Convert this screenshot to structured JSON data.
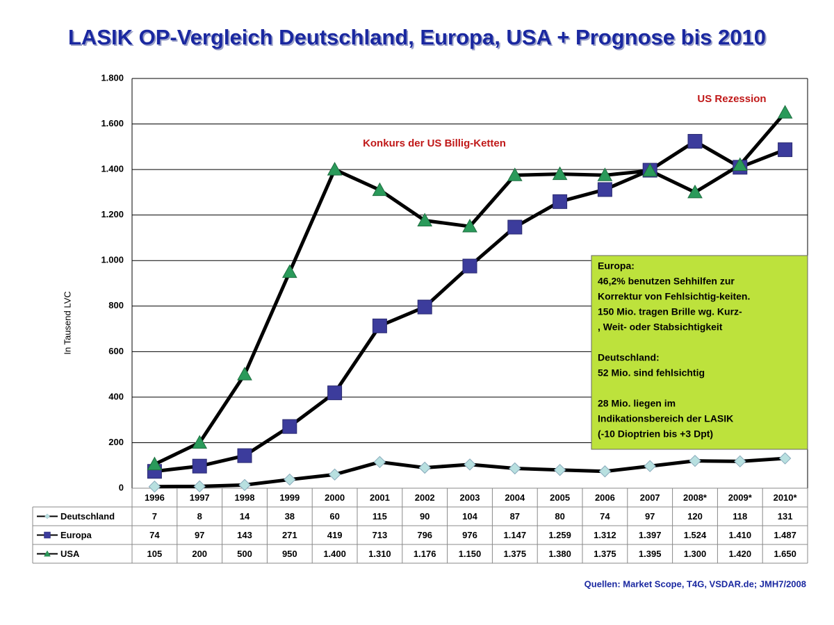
{
  "chart_data": {
    "type": "line",
    "title": "LASIK OP-Vergleich Deutschland, Europa, USA + Prognose bis 2010",
    "y_label": "In Tausend LVC",
    "categories": [
      "1996",
      "1997",
      "1998",
      "1999",
      "2000",
      "2001",
      "2002",
      "2003",
      "2004",
      "2005",
      "2006",
      "2007",
      "2008*",
      "2009*",
      "2010*"
    ],
    "ylim": [
      0,
      1800
    ],
    "yticks": [
      0,
      200,
      400,
      600,
      800,
      {
        "value": 1000,
        "label": "1.000"
      },
      {
        "value": 1200,
        "label": "1.200"
      },
      {
        "value": 1400,
        "label": "1.400"
      },
      {
        "value": 1600,
        "label": "1.600"
      },
      {
        "value": 1800,
        "label": "1.800"
      }
    ],
    "grid": true,
    "series": [
      {
        "name": "Deutschland",
        "color": "#b8e0e0",
        "marker": "diamond",
        "values": [
          7,
          8,
          14,
          38,
          60,
          115,
          90,
          104,
          87,
          80,
          74,
          97,
          120,
          118,
          131
        ]
      },
      {
        "name": "Europa",
        "color": "#3c3c9c",
        "marker": "square",
        "values": [
          74,
          97,
          143,
          271,
          419,
          713,
          796,
          976,
          1147,
          1259,
          1312,
          1397,
          1524,
          1410,
          1487
        ],
        "value_labels": [
          "74",
          "97",
          "143",
          "271",
          "419",
          "713",
          "796",
          "976",
          "1.147",
          "1.259",
          "1.312",
          "1.397",
          "1.524",
          "1.410",
          "1.487"
        ]
      },
      {
        "name": "USA",
        "color": "#2a9a5a",
        "marker": "triangle",
        "values": [
          105,
          200,
          500,
          950,
          1400,
          1310,
          1176,
          1150,
          1375,
          1380,
          1375,
          1395,
          1300,
          1420,
          1650
        ],
        "value_labels": [
          "105",
          "200",
          "500",
          "950",
          "1.400",
          "1.310",
          "1.176",
          "1.150",
          "1.375",
          "1.380",
          "1.375",
          "1.395",
          "1.300",
          "1.420",
          "1.650"
        ]
      }
    ],
    "annotations": [
      "Konkurs der US Billig-Ketten",
      "US Rezession"
    ],
    "textbox": [
      [
        "Europa:",
        "46,2% benutzen Sehhilfen zur",
        "Korrektur von Fehlsichtig-keiten.",
        "150 Mio. tragen Brille wg. Kurz-",
        ", Weit- oder Stabsichtigkeit"
      ],
      [
        "Deutschland:",
        "52 Mio. sind fehlsichtig"
      ],
      [
        "28 Mio. liegen im",
        "Indikationsbereich der LASIK",
        "(-10 Dioptrien bis +3 Dpt)"
      ]
    ],
    "source": "Quellen: Market Scope, T4G, VSDAR.de; JMH7/2008"
  }
}
